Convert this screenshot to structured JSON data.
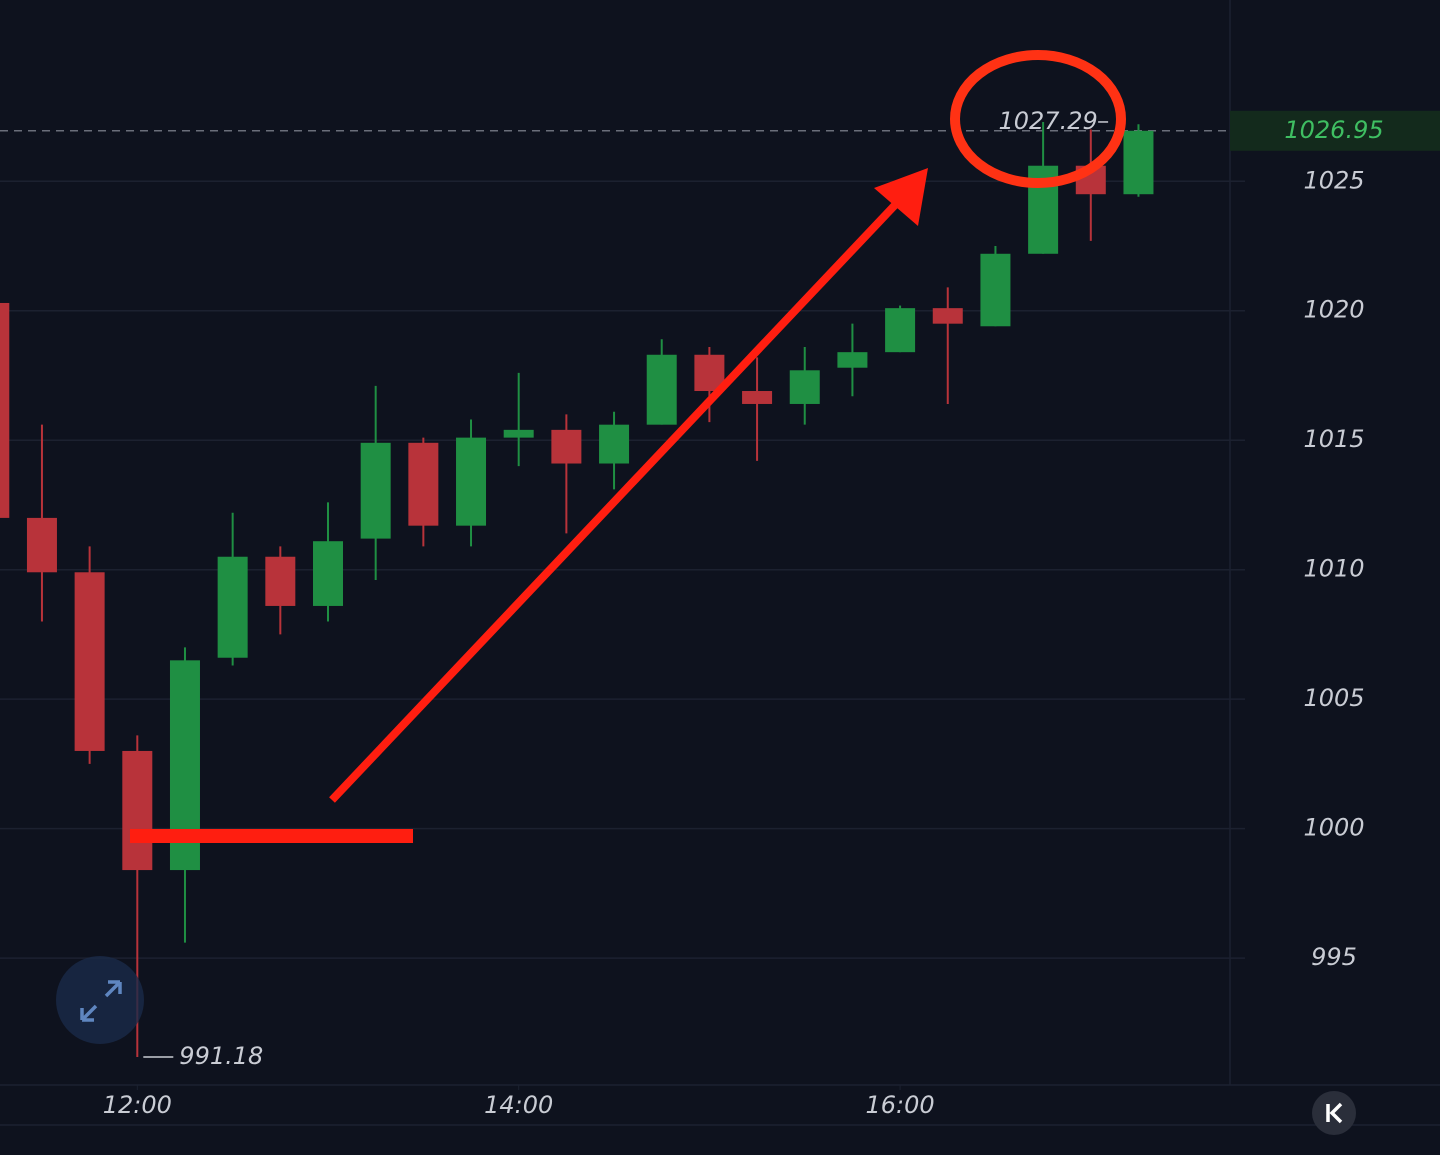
{
  "chart_data": {
    "type": "candlestick",
    "x": [
      11.25,
      11.5,
      11.75,
      12,
      12.25,
      12.5,
      12.75,
      13,
      13.25,
      13.5,
      13.75,
      14,
      14.25,
      14.5,
      14.75,
      15,
      15.25,
      15.5,
      15.75,
      16,
      16.25,
      16.5,
      16.75,
      17,
      17.25
    ],
    "open": [
      1020.3,
      1012.0,
      1009.9,
      1003.0,
      998.4,
      1006.6,
      1010.5,
      1008.6,
      1011.2,
      1014.9,
      1011.7,
      1015.1,
      1015.4,
      1014.1,
      1015.6,
      1018.3,
      1016.9,
      1016.4,
      1017.8,
      1018.4,
      1020.1,
      1019.4,
      1022.2,
      1025.6,
      1024.5
    ],
    "high": [
      1020.3,
      1015.6,
      1010.9,
      1003.6,
      1007.0,
      1012.2,
      1010.9,
      1012.6,
      1017.1,
      1015.1,
      1015.8,
      1017.6,
      1016.0,
      1016.1,
      1018.9,
      1018.6,
      1018.2,
      1018.6,
      1019.5,
      1020.2,
      1020.9,
      1022.5,
      1027.29,
      1027.0,
      1027.2
    ],
    "low": [
      1012.0,
      1008.0,
      1002.5,
      991.18,
      995.6,
      1006.3,
      1007.5,
      1008.0,
      1009.6,
      1010.9,
      1010.9,
      1014.0,
      1011.4,
      1013.1,
      1015.6,
      1015.7,
      1014.2,
      1015.6,
      1016.7,
      1018.4,
      1016.4,
      1019.4,
      1022.2,
      1022.7,
      1024.4
    ],
    "close": [
      1012.0,
      1009.9,
      1003.0,
      998.4,
      1006.5,
      1010.5,
      1008.6,
      1011.1,
      1014.9,
      1011.7,
      1015.1,
      1015.4,
      1014.1,
      1015.6,
      1018.3,
      1016.9,
      1016.4,
      1017.7,
      1018.4,
      1020.1,
      1019.5,
      1022.2,
      1025.6,
      1024.5,
      1026.95
    ],
    "up_color": "#1f8f43",
    "down_color": "#b8333a",
    "xlim": [
      11.28,
      17.73
    ],
    "ylim": [
      990.1,
      1032
    ],
    "xticks": [
      {
        "value": 12,
        "label": "12:00"
      },
      {
        "value": 14,
        "label": "14:00"
      },
      {
        "value": 16,
        "label": "16:00"
      }
    ],
    "yticks": [
      995,
      1000,
      1005,
      1010,
      1015,
      1020,
      1025
    ],
    "grid": true
  }
}
